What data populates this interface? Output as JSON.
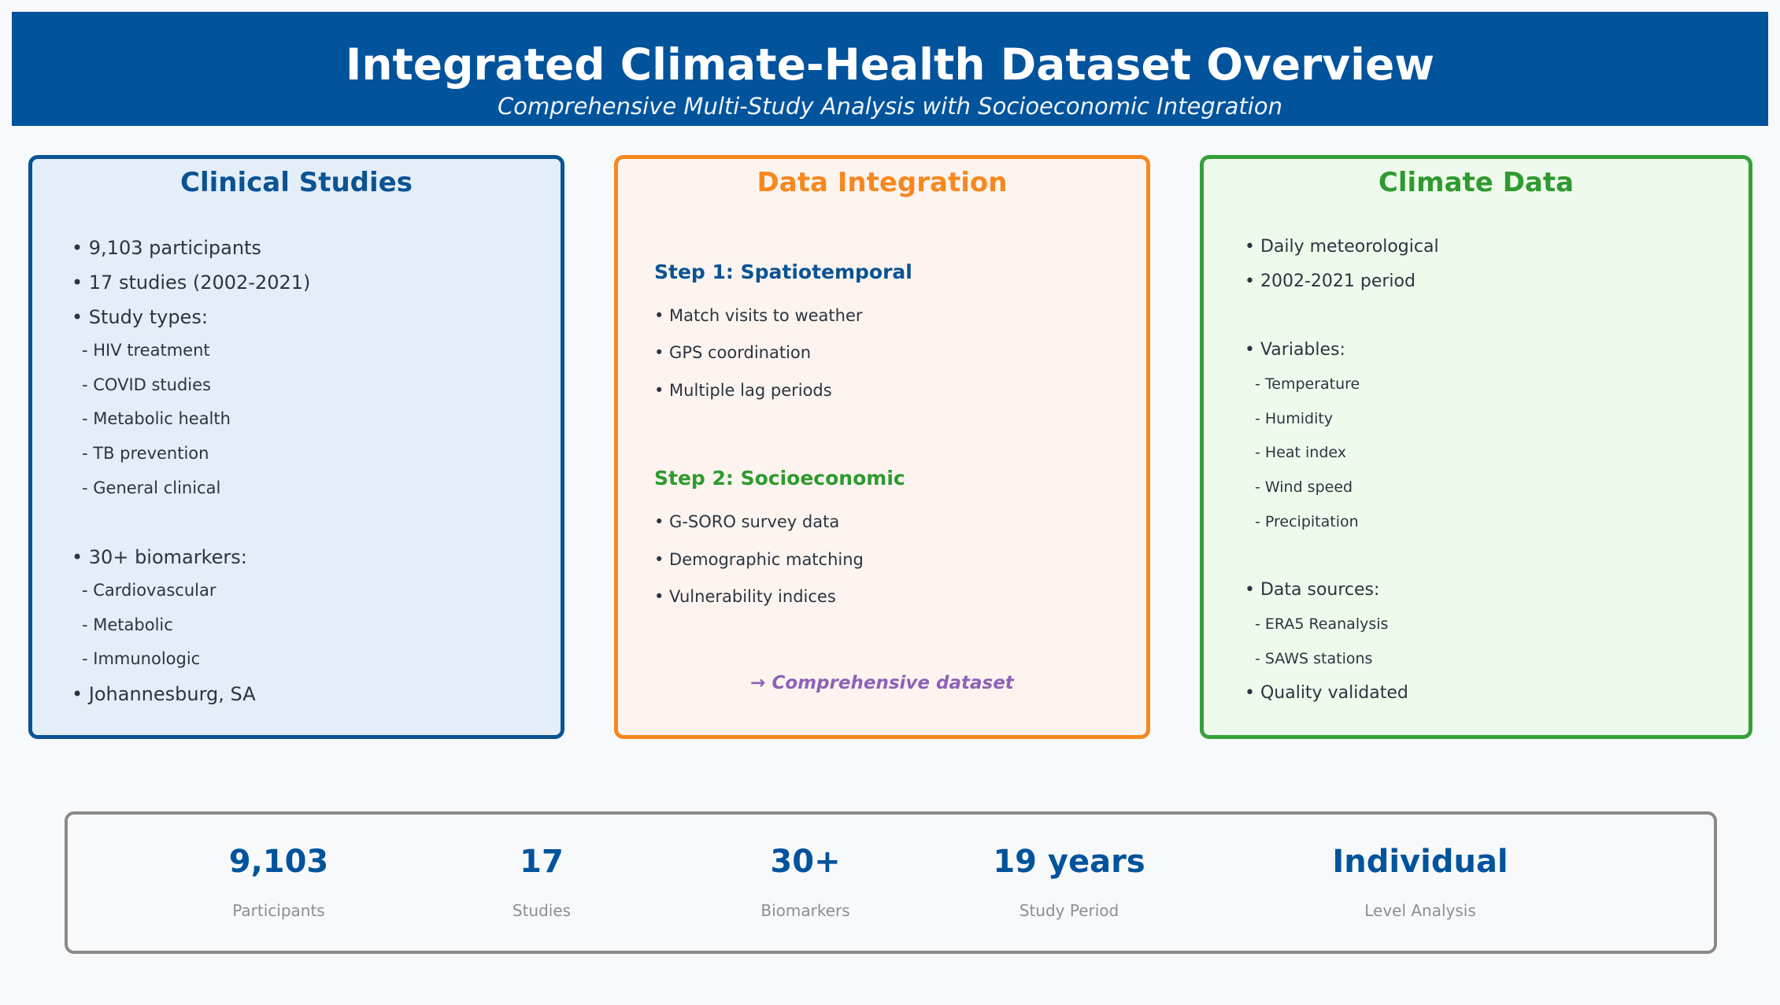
{
  "header": {
    "title": "Integrated Climate-Health Dataset Overview",
    "subtitle": "Comprehensive Multi-Study Analysis with Socioeconomic Integration"
  },
  "clinical": {
    "title": "Clinical Studies",
    "lines": [
      "• 9,103 participants",
      "• 17 studies (2002-2021)",
      "• Study types:",
      "- HIV treatment",
      "- COVID studies",
      "- Metabolic health",
      "- TB prevention",
      "- General clinical",
      "• 30+ biomarkers:",
      "- Cardiovascular",
      "- Metabolic",
      "- Immunologic",
      "• Johannesburg, SA"
    ]
  },
  "integration": {
    "title": "Data Integration",
    "step1": {
      "heading": "Step 1: Spatiotemporal",
      "items": [
        "• Match visits to weather",
        "• GPS coordination",
        "• Multiple lag periods"
      ]
    },
    "step2": {
      "heading": "Step 2: Socioeconomic",
      "items": [
        "• G-SORO survey data",
        "• Demographic matching",
        "• Vulnerability indices"
      ]
    },
    "note": "→ Comprehensive dataset"
  },
  "climate": {
    "title": "Climate Data",
    "lines": [
      "• Daily meteorological",
      "• 2002-2021 period",
      "• Variables:",
      "- Temperature",
      "- Humidity",
      "- Heat index",
      "- Wind speed",
      "- Precipitation",
      "• Data sources:",
      "- ERA5 Reanalysis",
      "- SAWS stations",
      "• Quality validated"
    ]
  },
  "stats": [
    {
      "value": "9,103",
      "label": "Participants"
    },
    {
      "value": "17",
      "label": "Studies"
    },
    {
      "value": "30+",
      "label": "Biomarkers"
    },
    {
      "value": "19 years",
      "label": "Study Period"
    },
    {
      "value": "Individual",
      "label": "Level Analysis"
    }
  ],
  "colors": {
    "header_bg": "#01539c",
    "clinical_accent": "#0a5394",
    "integration_accent": "#f5881f",
    "climate_accent": "#35a03a",
    "note_purple": "#8d62b8",
    "step2_green": "#2f9a2f"
  }
}
